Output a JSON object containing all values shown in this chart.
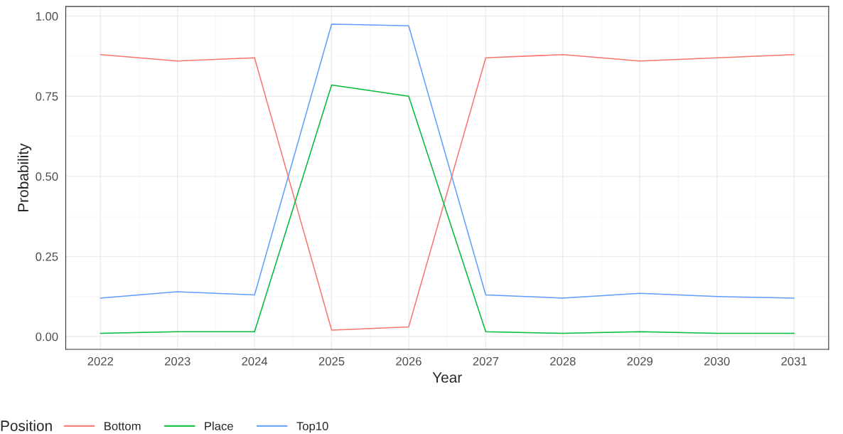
{
  "chart_data": {
    "type": "line",
    "xlabel": "Year",
    "ylabel": "Probability",
    "legend_title": "Position",
    "x": [
      2022,
      2023,
      2024,
      2025,
      2026,
      2027,
      2028,
      2029,
      2030,
      2031
    ],
    "series": [
      {
        "name": "Bottom",
        "color": "#f8766d",
        "values": [
          0.88,
          0.86,
          0.87,
          0.02,
          0.03,
          0.87,
          0.88,
          0.86,
          0.87,
          0.88
        ]
      },
      {
        "name": "Place",
        "color": "#00ba38",
        "values": [
          0.01,
          0.015,
          0.015,
          0.785,
          0.75,
          0.015,
          0.01,
          0.015,
          0.01,
          0.01
        ]
      },
      {
        "name": "Top10",
        "color": "#619cff",
        "values": [
          0.12,
          0.14,
          0.13,
          0.975,
          0.97,
          0.13,
          0.12,
          0.135,
          0.125,
          0.12
        ]
      }
    ],
    "xlim": [
      2021.55,
      2031.45
    ],
    "xticks": [
      2022,
      2023,
      2024,
      2025,
      2026,
      2027,
      2028,
      2029,
      2030,
      2031
    ],
    "ylim": [
      -0.04,
      1.03
    ],
    "yticks": [
      {
        "value": 0,
        "label": "0.00"
      },
      {
        "value": 0.25,
        "label": "0.25"
      },
      {
        "value": 0.5,
        "label": "0.50"
      },
      {
        "value": 0.75,
        "label": "0.75"
      },
      {
        "value": 1,
        "label": "1.00"
      }
    ],
    "grid": true,
    "legend": "bottom",
    "marker": "none",
    "line_style": "solid"
  }
}
